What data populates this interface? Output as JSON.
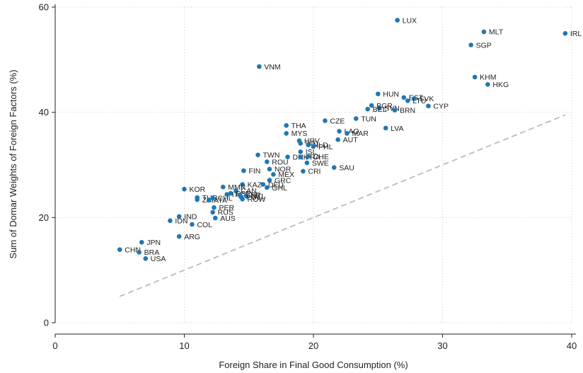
{
  "chart_data": {
    "type": "scatter",
    "xlabel": "Foreign Share in Final Good Consumption (%)",
    "ylabel": "Sum of Domar Weights of Foreign Factors (%)",
    "xlim": [
      0,
      40
    ],
    "ylim": [
      0,
      60
    ],
    "x_ticks": [
      0,
      10,
      20,
      30,
      40
    ],
    "y_ticks": [
      0,
      20,
      40,
      60
    ],
    "grid": true,
    "point_color": "#1f77b4",
    "reference_line": {
      "style": "dashed",
      "color": "#bbbbbb",
      "x": [
        5,
        39.5
      ],
      "y": [
        5,
        39.5
      ]
    },
    "points": [
      {
        "label": "LUX",
        "x": 26.5,
        "y": 57.5
      },
      {
        "label": "MLT",
        "x": 33.2,
        "y": 55.3
      },
      {
        "label": "IRL",
        "x": 39.5,
        "y": 55.0
      },
      {
        "label": "SGP",
        "x": 32.2,
        "y": 52.8
      },
      {
        "label": "VNM",
        "x": 15.8,
        "y": 48.7
      },
      {
        "label": "KHM",
        "x": 32.5,
        "y": 46.7
      },
      {
        "label": "HKG",
        "x": 33.5,
        "y": 45.3
      },
      {
        "label": "HUN",
        "x": 25.0,
        "y": 43.5
      },
      {
        "label": "EST",
        "x": 27.0,
        "y": 42.8
      },
      {
        "label": "SVK",
        "x": 27.8,
        "y": 42.6
      },
      {
        "label": "LTU",
        "x": 27.3,
        "y": 42.2
      },
      {
        "label": "CYP",
        "x": 28.9,
        "y": 41.2
      },
      {
        "label": "BGR",
        "x": 24.5,
        "y": 41.3
      },
      {
        "label": "SVN",
        "x": 25.1,
        "y": 40.8
      },
      {
        "label": "BEL",
        "x": 24.2,
        "y": 40.6
      },
      {
        "label": "BRN",
        "x": 26.3,
        "y": 40.4
      },
      {
        "label": "TUN",
        "x": 23.3,
        "y": 38.8
      },
      {
        "label": "CZE",
        "x": 20.9,
        "y": 38.4
      },
      {
        "label": "THA",
        "x": 17.9,
        "y": 37.5
      },
      {
        "label": "LVA",
        "x": 25.6,
        "y": 37.0
      },
      {
        "label": "LAO",
        "x": 22.0,
        "y": 36.4
      },
      {
        "label": "MAR",
        "x": 22.6,
        "y": 36.0
      },
      {
        "label": "MYS",
        "x": 17.9,
        "y": 36.0
      },
      {
        "label": "AUT",
        "x": 21.9,
        "y": 34.8
      },
      {
        "label": "HRV",
        "x": 18.9,
        "y": 34.6
      },
      {
        "label": "IND",
        "x": 19.0,
        "y": 34.1
      },
      {
        "label": "NLD",
        "x": 19.6,
        "y": 33.8
      },
      {
        "label": "PHL",
        "x": 20.0,
        "y": 33.5
      },
      {
        "label": "ISL",
        "x": 19.0,
        "y": 32.5
      },
      {
        "label": "TWN",
        "x": 15.7,
        "y": 31.9
      },
      {
        "label": "DNK",
        "x": 18.0,
        "y": 31.5
      },
      {
        "label": "FRA",
        "x": 19.0,
        "y": 31.5
      },
      {
        "label": "CHE",
        "x": 19.6,
        "y": 31.6
      },
      {
        "label": "ROU",
        "x": 16.4,
        "y": 30.6
      },
      {
        "label": "SWE",
        "x": 19.5,
        "y": 30.4
      },
      {
        "label": "SAU",
        "x": 21.6,
        "y": 29.5
      },
      {
        "label": "NOR",
        "x": 16.6,
        "y": 29.2
      },
      {
        "label": "FIN",
        "x": 14.6,
        "y": 28.9
      },
      {
        "label": "CRI",
        "x": 19.2,
        "y": 28.8
      },
      {
        "label": "MEX",
        "x": 16.9,
        "y": 28.2
      },
      {
        "label": "GRC",
        "x": 16.6,
        "y": 27.1
      },
      {
        "label": "KAZ",
        "x": 14.5,
        "y": 26.3
      },
      {
        "label": "DEU",
        "x": 16.1,
        "y": 26.3
      },
      {
        "label": "MMR",
        "x": 13.0,
        "y": 25.8
      },
      {
        "label": "GHL",
        "x": 16.4,
        "y": 25.7
      },
      {
        "label": "KOR",
        "x": 10.0,
        "y": 25.4
      },
      {
        "label": "CAN",
        "x": 14.0,
        "y": 25.1
      },
      {
        "label": "ESP",
        "x": 13.6,
        "y": 24.6
      },
      {
        "label": "ITA",
        "x": 13.3,
        "y": 24.4
      },
      {
        "label": "GBR",
        "x": 14.3,
        "y": 24.3
      },
      {
        "label": "NZL",
        "x": 14.8,
        "y": 24.1
      },
      {
        "label": "POL",
        "x": 14.4,
        "y": 23.9
      },
      {
        "label": "TUR",
        "x": 11.0,
        "y": 23.8
      },
      {
        "label": "ZAF",
        "x": 11.0,
        "y": 23.4
      },
      {
        "label": "CHL",
        "x": 12.2,
        "y": 23.7
      },
      {
        "label": "ROW",
        "x": 14.5,
        "y": 23.5
      },
      {
        "label": "ATA",
        "x": 11.9,
        "y": 23.3
      },
      {
        "label": "PER",
        "x": 12.3,
        "y": 21.9
      },
      {
        "label": "RUS",
        "x": 12.2,
        "y": 21.0
      },
      {
        "label": "IND",
        "x": 9.6,
        "y": 20.2
      },
      {
        "label": "AUS",
        "x": 12.4,
        "y": 19.9
      },
      {
        "label": "IDN",
        "x": 8.9,
        "y": 19.4
      },
      {
        "label": "COL",
        "x": 10.6,
        "y": 18.7
      },
      {
        "label": "ARG",
        "x": 9.6,
        "y": 16.4
      },
      {
        "label": "JPN",
        "x": 6.7,
        "y": 15.3
      },
      {
        "label": "CHN",
        "x": 5.0,
        "y": 13.9
      },
      {
        "label": "BRA",
        "x": 6.5,
        "y": 13.4
      },
      {
        "label": "USA",
        "x": 7.0,
        "y": 12.2
      }
    ]
  }
}
